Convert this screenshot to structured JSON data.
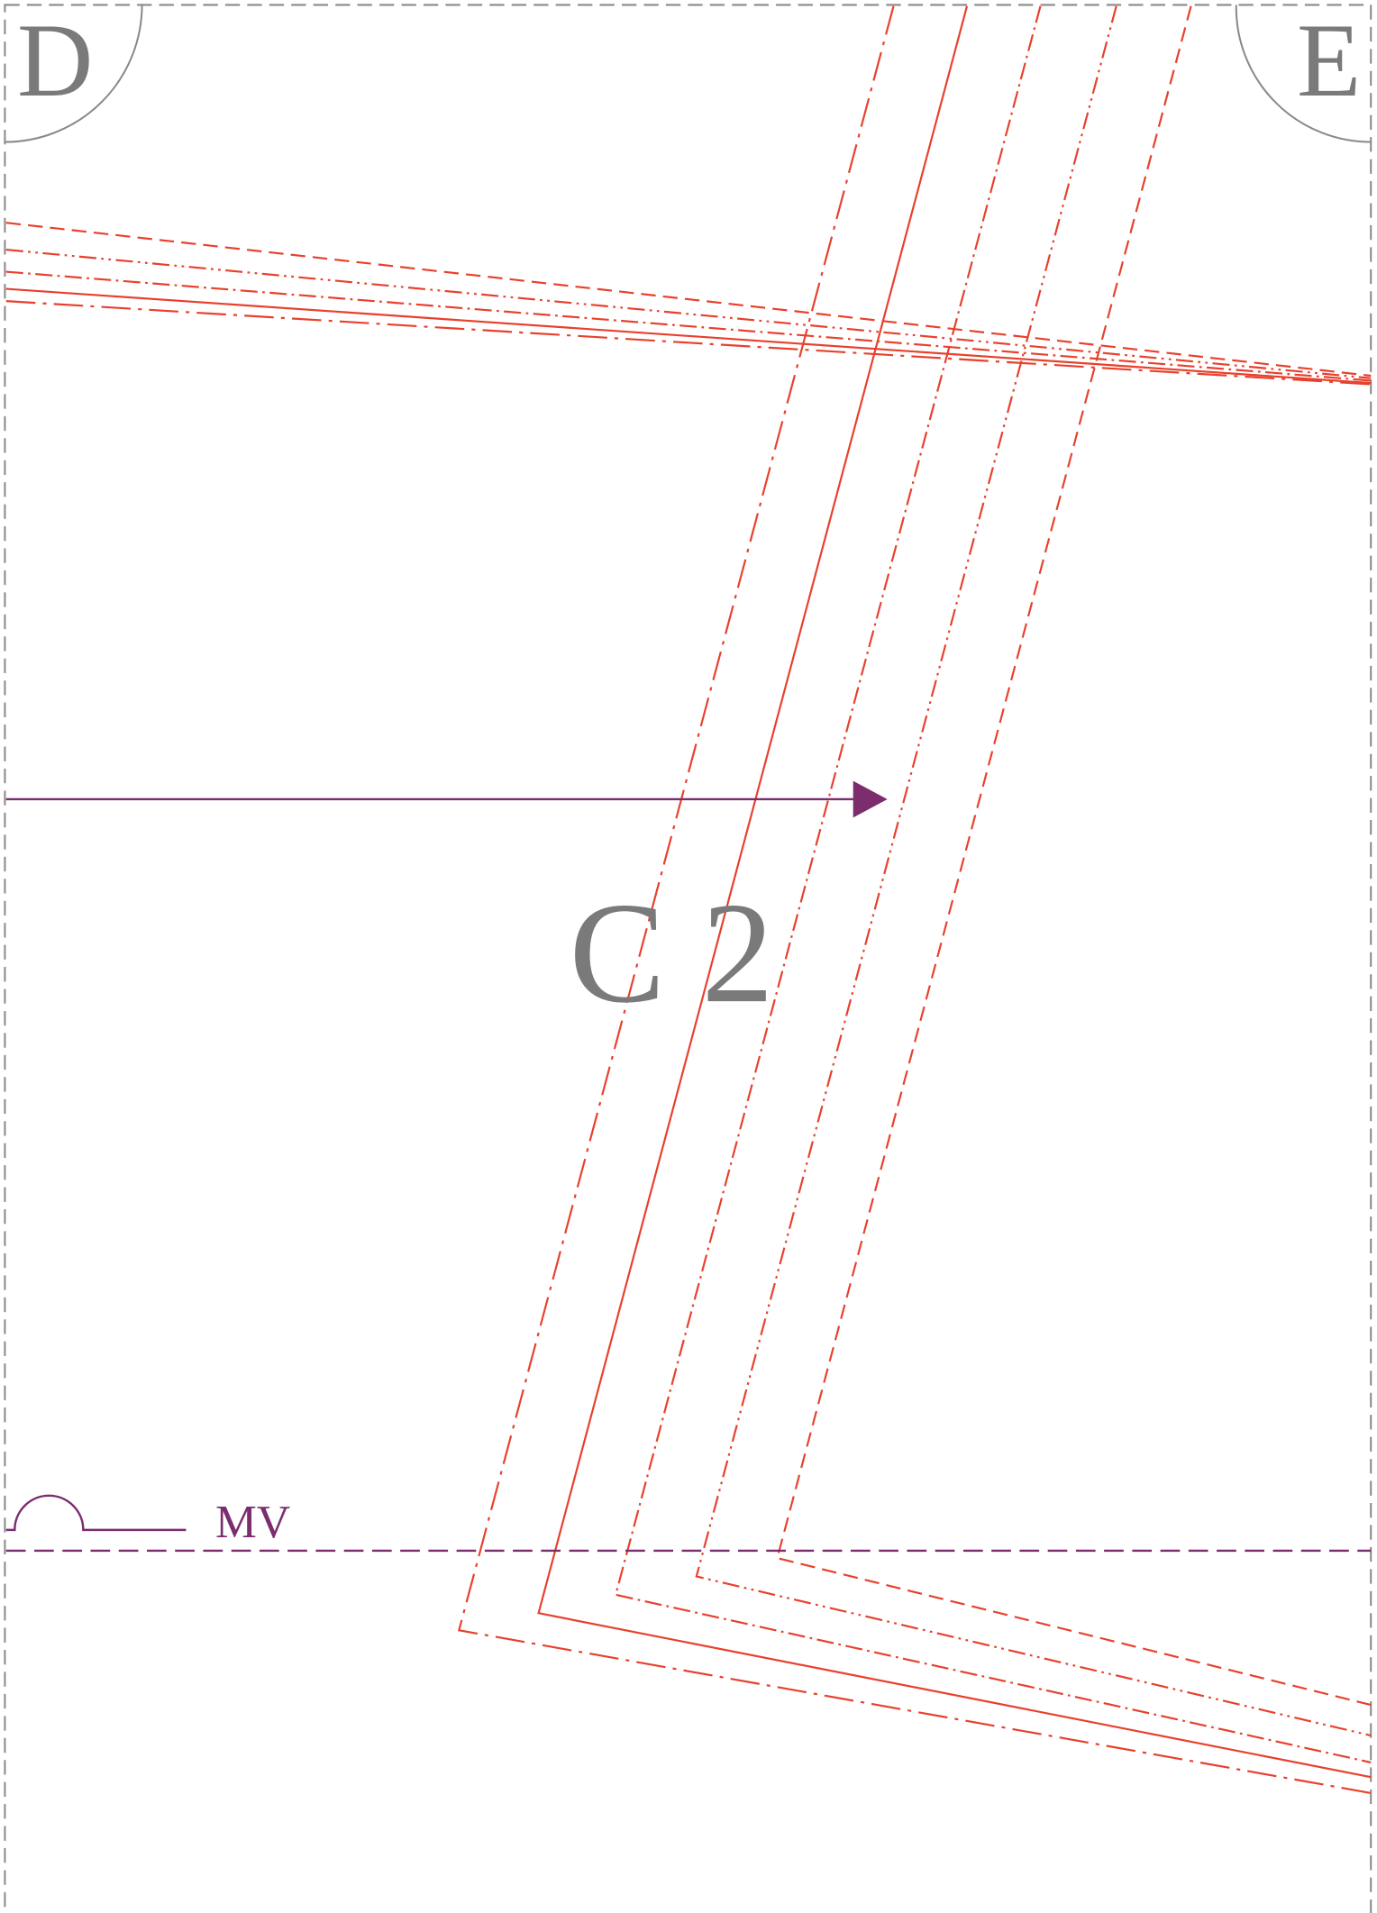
{
  "corners": {
    "left": "D",
    "right": "E"
  },
  "piece": {
    "label": "C 2"
  },
  "marker": {
    "label": "MV"
  }
}
